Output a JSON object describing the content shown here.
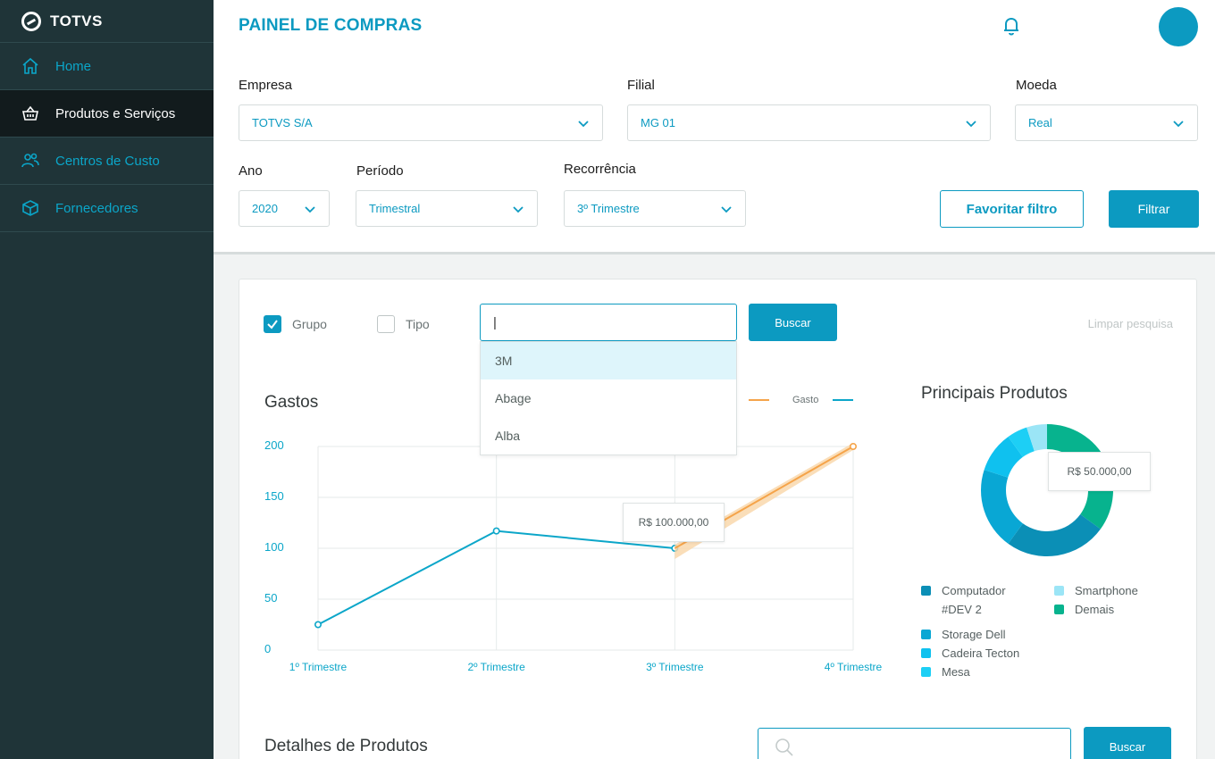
{
  "brand": {
    "name": "TOTVS"
  },
  "sidebar": {
    "items": [
      {
        "label": "Home",
        "icon": "home-icon",
        "active": false
      },
      {
        "label": "Produtos e Serviços",
        "icon": "basket-icon",
        "active": true
      },
      {
        "label": "Centros de Custo",
        "icon": "users-icon",
        "active": false
      },
      {
        "label": "Fornecedores",
        "icon": "box-icon",
        "active": false
      }
    ]
  },
  "header": {
    "title": "PAINEL DE COMPRAS"
  },
  "filters": {
    "empresa": {
      "label": "Empresa",
      "value": "TOTVS S/A"
    },
    "filial": {
      "label": "Filial",
      "value": "MG 01"
    },
    "moeda": {
      "label": "Moeda",
      "value": "Real"
    },
    "ano": {
      "label": "Ano",
      "value": "2020"
    },
    "periodo": {
      "label": "Período",
      "value": "Trimestral"
    },
    "recorrencia": {
      "label": "Recorrência",
      "value": "3º Trimestre"
    },
    "favorite_label": "Favoritar filtro",
    "filter_label": "Filtrar"
  },
  "search": {
    "grupo_label": "Grupo",
    "tipo_label": "Tipo",
    "input_value": "|",
    "button_label": "Buscar",
    "clear_label": "Limpar pesquisa",
    "options": [
      "3M",
      "Abage",
      "Alba"
    ]
  },
  "chart_data": {
    "type": "line",
    "title": "Gastos",
    "categories": [
      "1º Trimestre",
      "2º Trimestre",
      "3º Trimestre",
      "4º Trimestre"
    ],
    "yticks": [
      "200",
      "150",
      "100",
      "50",
      "0"
    ],
    "ylim": [
      0,
      200
    ],
    "series": [
      {
        "name": "Gasto",
        "color": "#0ba6c9",
        "values": [
          25,
          117,
          100,
          null
        ]
      },
      {
        "name": "",
        "color": "#f5a44a",
        "values": [
          null,
          null,
          100,
          200
        ]
      }
    ],
    "tooltip": "R$ 100.000,00"
  },
  "donut": {
    "title": "Principais Produtos",
    "tooltip": "R$ 50.000,00",
    "segments": [
      {
        "label": "Computador #DEV 2",
        "color": "#0b8fb6",
        "value": 25
      },
      {
        "label": "Storage Dell",
        "color": "#09a7d4",
        "value": 20
      },
      {
        "label": "Cadeira Tecton",
        "color": "#0fc1ef",
        "value": 10
      },
      {
        "label": "Mesa",
        "color": "#1dcff5",
        "value": 5
      },
      {
        "label": "Smartphone",
        "color": "#9be5f6",
        "value": 5
      },
      {
        "label": "Demais",
        "color": "#07b38e",
        "value": 35
      }
    ]
  },
  "details": {
    "title": "Detalhes de Produtos",
    "button_label": "Buscar"
  }
}
